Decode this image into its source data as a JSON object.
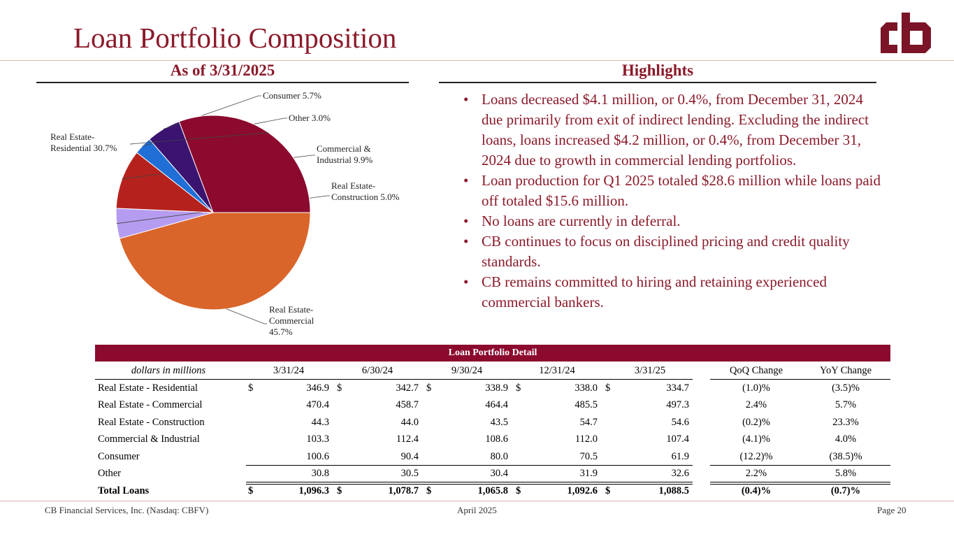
{
  "page": {
    "title": "Loan Portfolio Composition",
    "left_heading": "As of 3/31/2025",
    "right_heading": "Highlights",
    "brand_color": "#8b1a2a"
  },
  "logo": {
    "icon": "cb-logo-icon",
    "text": "cb"
  },
  "chart_data": {
    "type": "pie",
    "slices": [
      {
        "name": "Real Estate-Commercial",
        "value": 45.7,
        "label": "Real Estate-Commercial 45.7%",
        "color": "#d9652b"
      },
      {
        "name": "Real Estate-Construction",
        "value": 5.0,
        "label": "Real Estate-Construction 5.0%",
        "color": "#b59cf0"
      },
      {
        "name": "Commercial & Industrial",
        "value": 9.9,
        "label": "Commercial & Industrial 9.9%",
        "color": "#b5221d"
      },
      {
        "name": "Other",
        "value": 3.0,
        "label": "Other 3.0%",
        "color": "#1f6fd6"
      },
      {
        "name": "Consumer",
        "value": 5.7,
        "label": "Consumer 5.7%",
        "color": "#3a1470"
      },
      {
        "name": "Real Estate-Residential",
        "value": 30.7,
        "label": "Real Estate-Residential 30.7%",
        "color": "#8b0a2e"
      }
    ],
    "slice_order": "clockwise starting at 3 o'clock",
    "legend": "none (callout labels)"
  },
  "highlights": [
    "Loans decreased $4.1 million, or 0.4%, from December 31, 2024 due primarily from exit of indirect lending. Excluding the indirect loans, loans increased $4.2 million, or 0.4%, from December 31, 2024 due to growth in commercial lending portfolios.",
    "Loan production for Q1 2025 totaled $28.6 million while loans paid off totaled $15.6 million.",
    "No loans are currently in deferral.",
    "CB continues to focus on disciplined pricing and credit quality standards.",
    "CB remains committed to hiring and retaining experienced commercial bankers."
  ],
  "table": {
    "title": "Loan Portfolio Detail",
    "unit_label": "dollars in millions",
    "columns": [
      "3/31/24",
      "6/30/24",
      "9/30/24",
      "12/31/24",
      "3/31/25"
    ],
    "change_columns": [
      "QoQ Change",
      "YoY Change"
    ],
    "currency_symbol": "$",
    "rows": [
      {
        "label": "Real Estate - Residential",
        "dollar": true,
        "values": [
          "346.9",
          "342.7",
          "338.9",
          "338.0",
          "334.7"
        ],
        "qoq": "(1.0)%",
        "yoy": "(3.5)%"
      },
      {
        "label": "Real Estate - Commercial",
        "dollar": false,
        "values": [
          "470.4",
          "458.7",
          "464.4",
          "485.5",
          "497.3"
        ],
        "qoq": "2.4%",
        "yoy": "5.7%"
      },
      {
        "label": "Real Estate - Construction",
        "dollar": false,
        "values": [
          "44.3",
          "44.0",
          "43.5",
          "54.7",
          "54.6"
        ],
        "qoq": "(0.2)%",
        "yoy": "23.3%"
      },
      {
        "label": "Commercial & Industrial",
        "dollar": false,
        "values": [
          "103.3",
          "112.4",
          "108.6",
          "112.0",
          "107.4"
        ],
        "qoq": "(4.1)%",
        "yoy": "4.0%"
      },
      {
        "label": "Consumer",
        "dollar": false,
        "values": [
          "100.6",
          "90.4",
          "80.0",
          "70.5",
          "61.9"
        ],
        "qoq": "(12.2)%",
        "yoy": "(38.5)%"
      },
      {
        "label": "Other",
        "dollar": false,
        "values": [
          "30.8",
          "30.5",
          "30.4",
          "31.9",
          "32.6"
        ],
        "qoq": "2.2%",
        "yoy": "5.8%"
      }
    ],
    "total": {
      "label": "Total Loans",
      "dollar": true,
      "values": [
        "1,096.3",
        "1,078.7",
        "1,065.8",
        "1,092.6",
        "1,088.5"
      ],
      "qoq": "(0.4)%",
      "yoy": "(0.7)%"
    }
  },
  "footer": {
    "company": "CB Financial Services, Inc. (Nasdaq: CBFV)",
    "date": "April 2025",
    "page": "Page 20"
  }
}
